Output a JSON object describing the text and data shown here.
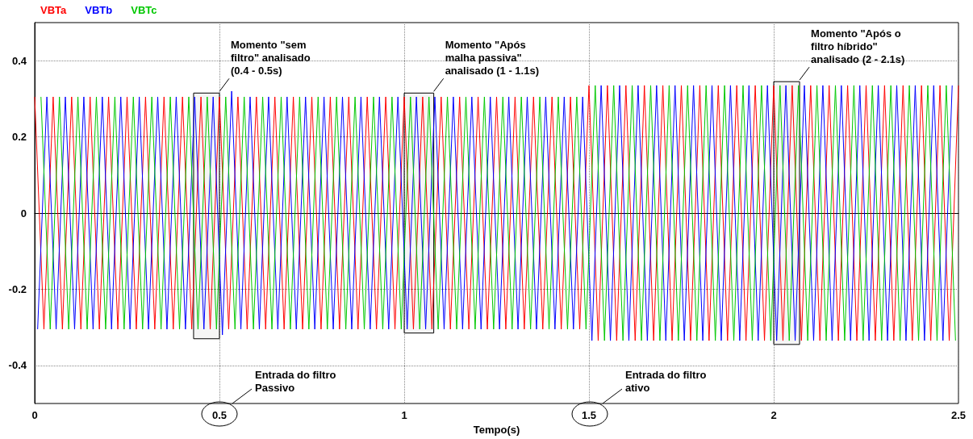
{
  "chart_data": {
    "type": "line",
    "xlabel": "Tempo(s)",
    "xlim": [
      0,
      2.5
    ],
    "xticks": [
      0,
      0.5,
      1,
      1.5,
      2,
      2.5
    ],
    "ylim": [
      -0.5,
      0.5
    ],
    "yticks": [
      -0.4,
      -0.2,
      0,
      0.2,
      0.4
    ],
    "grid": true,
    "legend": "top left",
    "marker": "none",
    "line_style": "solid",
    "series": [
      {
        "name": "VBTa",
        "color": "#ff0000",
        "x": [
          0,
          0.025,
          0.05,
          0.075,
          0.1,
          0.125,
          0.15,
          0.175,
          0.2,
          0.225,
          0.25,
          0.275,
          0.3,
          0.325,
          0.35,
          0.375,
          0.4,
          0.425,
          0.45,
          0.475,
          0.5,
          0.525,
          0.55,
          0.575,
          0.6,
          0.625,
          0.65,
          0.675,
          0.7,
          0.725,
          0.75,
          0.775,
          0.8,
          0.825,
          0.85,
          0.875,
          0.9,
          0.925,
          0.95,
          0.975,
          1,
          1.025,
          1.05,
          1.075,
          1.1,
          1.125,
          1.15,
          1.175,
          1.2,
          1.225,
          1.25,
          1.275,
          1.3,
          1.325,
          1.35,
          1.375,
          1.4,
          1.425,
          1.45,
          1.475,
          1.5,
          1.525,
          1.55,
          1.575,
          1.6,
          1.625,
          1.65,
          1.675,
          1.7,
          1.725,
          1.75,
          1.775,
          1.8,
          1.825,
          1.85,
          1.875,
          1.9,
          1.925,
          1.95,
          1.975,
          2,
          2.025,
          2.05,
          2.075,
          2.1,
          2.125,
          2.15,
          2.175,
          2.2,
          2.225,
          2.25,
          2.275,
          2.3,
          2.325,
          2.35,
          2.375,
          2.4,
          2.425,
          2.45,
          2.475,
          2.5
        ],
        "values": [
          0.305,
          -0.305,
          0.305,
          -0.305,
          0.305,
          -0.305,
          0.305,
          -0.305,
          0.305,
          -0.305,
          0.305,
          -0.305,
          0.305,
          -0.305,
          0.305,
          -0.305,
          0.305,
          -0.305,
          0.305,
          -0.305,
          0.305,
          -0.305,
          0.305,
          -0.305,
          0.305,
          -0.305,
          0.305,
          -0.305,
          0.305,
          -0.305,
          0.305,
          -0.305,
          0.305,
          -0.305,
          0.305,
          -0.305,
          0.305,
          -0.305,
          0.305,
          -0.305,
          0.305,
          -0.305,
          0.305,
          -0.305,
          0.305,
          -0.305,
          0.305,
          -0.305,
          0.305,
          -0.305,
          0.305,
          -0.305,
          0.305,
          -0.305,
          0.305,
          -0.305,
          0.305,
          -0.305,
          0.305,
          -0.305,
          0.335,
          -0.335,
          0.335,
          -0.335,
          0.335,
          -0.335,
          0.335,
          -0.335,
          0.335,
          -0.335,
          0.335,
          -0.335,
          0.335,
          -0.335,
          0.335,
          -0.335,
          0.335,
          -0.335,
          0.335,
          -0.335,
          0.335,
          -0.335,
          0.335,
          -0.335,
          0.335,
          -0.335,
          0.335,
          -0.335,
          0.335,
          -0.335,
          0.335,
          -0.335,
          0.335,
          -0.335,
          0.335,
          -0.335,
          0.335,
          -0.335,
          0.335,
          -0.335,
          0.335
        ]
      },
      {
        "name": "VBTb",
        "color": "#0000ff",
        "x": [
          0.008,
          0.033,
          0.058,
          0.083,
          0.108,
          0.133,
          0.158,
          0.183,
          0.208,
          0.233,
          0.258,
          0.283,
          0.308,
          0.333,
          0.358,
          0.383,
          0.408,
          0.433,
          0.458,
          0.483,
          0.508,
          0.533,
          0.558,
          0.583,
          0.608,
          0.633,
          0.658,
          0.683,
          0.708,
          0.733,
          0.758,
          0.783,
          0.808,
          0.833,
          0.858,
          0.883,
          0.908,
          0.933,
          0.958,
          0.983,
          1.008,
          1.033,
          1.058,
          1.083,
          1.108,
          1.133,
          1.158,
          1.183,
          1.208,
          1.233,
          1.258,
          1.283,
          1.308,
          1.333,
          1.358,
          1.383,
          1.408,
          1.433,
          1.458,
          1.483,
          1.508,
          1.533,
          1.558,
          1.583,
          1.608,
          1.633,
          1.658,
          1.683,
          1.708,
          1.733,
          1.758,
          1.783,
          1.808,
          1.833,
          1.858,
          1.883,
          1.908,
          1.933,
          1.958,
          1.983,
          2.008,
          2.033,
          2.058,
          2.083,
          2.108,
          2.133,
          2.158,
          2.183,
          2.208,
          2.233,
          2.258,
          2.283,
          2.308,
          2.333,
          2.358,
          2.383,
          2.408,
          2.433,
          2.458,
          2.483
        ],
        "values": [
          -0.305,
          0.305,
          -0.305,
          0.305,
          -0.305,
          0.305,
          -0.305,
          0.305,
          -0.305,
          0.305,
          -0.305,
          0.305,
          -0.305,
          0.305,
          -0.305,
          0.305,
          -0.305,
          0.305,
          -0.305,
          0.305,
          -0.32,
          0.32,
          -0.305,
          0.305,
          -0.305,
          0.305,
          -0.305,
          0.305,
          -0.305,
          0.305,
          -0.305,
          0.305,
          -0.305,
          0.305,
          -0.305,
          0.305,
          -0.305,
          0.305,
          -0.305,
          0.305,
          -0.305,
          0.305,
          -0.305,
          0.305,
          -0.305,
          0.305,
          -0.305,
          0.305,
          -0.305,
          0.305,
          -0.305,
          0.305,
          -0.305,
          0.305,
          -0.305,
          0.305,
          -0.305,
          0.305,
          -0.305,
          0.305,
          -0.335,
          0.335,
          -0.335,
          0.335,
          -0.335,
          0.335,
          -0.335,
          0.335,
          -0.335,
          0.335,
          -0.335,
          0.335,
          -0.335,
          0.335,
          -0.335,
          0.335,
          -0.335,
          0.335,
          -0.335,
          0.335,
          -0.335,
          0.335,
          -0.335,
          0.335,
          -0.335,
          0.335,
          -0.335,
          0.335,
          -0.335,
          0.335,
          -0.335,
          0.335,
          -0.335,
          0.335,
          -0.335,
          0.335,
          -0.335,
          0.335,
          -0.335,
          0.335
        ]
      },
      {
        "name": "VBTc",
        "color": "#00c800",
        "x": [
          0.017,
          0.042,
          0.067,
          0.092,
          0.117,
          0.142,
          0.167,
          0.192,
          0.217,
          0.242,
          0.267,
          0.292,
          0.317,
          0.342,
          0.367,
          0.392,
          0.417,
          0.442,
          0.467,
          0.492,
          0.517,
          0.542,
          0.567,
          0.592,
          0.617,
          0.642,
          0.667,
          0.692,
          0.717,
          0.742,
          0.767,
          0.792,
          0.817,
          0.842,
          0.867,
          0.892,
          0.917,
          0.942,
          0.967,
          0.992,
          1.017,
          1.042,
          1.067,
          1.092,
          1.117,
          1.142,
          1.167,
          1.192,
          1.217,
          1.242,
          1.267,
          1.292,
          1.317,
          1.342,
          1.367,
          1.392,
          1.417,
          1.442,
          1.467,
          1.492,
          1.517,
          1.542,
          1.567,
          1.592,
          1.617,
          1.642,
          1.667,
          1.692,
          1.717,
          1.742,
          1.767,
          1.792,
          1.817,
          1.842,
          1.867,
          1.892,
          1.917,
          1.942,
          1.967,
          1.992,
          2.017,
          2.042,
          2.067,
          2.092,
          2.117,
          2.142,
          2.167,
          2.192,
          2.217,
          2.242,
          2.267,
          2.292,
          2.317,
          2.342,
          2.367,
          2.392,
          2.417,
          2.442,
          2.467,
          2.492
        ],
        "values": [
          0.305,
          -0.305,
          0.305,
          -0.305,
          0.305,
          -0.305,
          0.305,
          -0.305,
          0.305,
          -0.305,
          0.305,
          -0.305,
          0.305,
          -0.305,
          0.305,
          -0.305,
          0.305,
          -0.305,
          0.305,
          -0.305,
          0.305,
          -0.305,
          0.305,
          -0.305,
          0.305,
          -0.305,
          0.305,
          -0.305,
          0.305,
          -0.305,
          0.305,
          -0.305,
          0.305,
          -0.305,
          0.305,
          -0.305,
          0.305,
          -0.305,
          0.305,
          -0.305,
          0.305,
          -0.305,
          0.305,
          -0.305,
          0.305,
          -0.305,
          0.305,
          -0.305,
          0.305,
          -0.305,
          0.305,
          -0.305,
          0.305,
          -0.305,
          0.305,
          -0.305,
          0.305,
          -0.305,
          0.305,
          -0.305,
          0.335,
          -0.335,
          0.335,
          -0.335,
          0.335,
          -0.335,
          0.335,
          -0.335,
          0.335,
          -0.335,
          0.335,
          -0.335,
          0.335,
          -0.335,
          0.335,
          -0.335,
          0.335,
          -0.335,
          0.335,
          -0.335,
          0.335,
          -0.335,
          0.335,
          -0.335,
          0.335,
          -0.335,
          0.335,
          -0.335,
          0.335,
          -0.335,
          0.335,
          -0.335,
          0.335,
          -0.335,
          0.335,
          -0.335,
          0.335,
          -0.335,
          0.335,
          -0.335
        ]
      }
    ],
    "bands": [
      {
        "axis": "x",
        "from": 0.43,
        "to": 0.5
      },
      {
        "axis": "x",
        "from": 1.0,
        "to": 1.08
      },
      {
        "axis": "x",
        "from": 2.0,
        "to": 2.07
      }
    ],
    "annotations": [
      "Momento \"sem\nfiltro\" analisado\n(0.4 - 0.5s)",
      "Momento \"Após\nmalha passiva\"\nanalisado (1 - 1.1s)",
      "Momento \"Após o\nfiltro híbrido\"\nanalisado (2 - 2.1s)",
      "Entrada do filtro\nPassivo",
      "Entrada do filtro\nativo"
    ]
  }
}
